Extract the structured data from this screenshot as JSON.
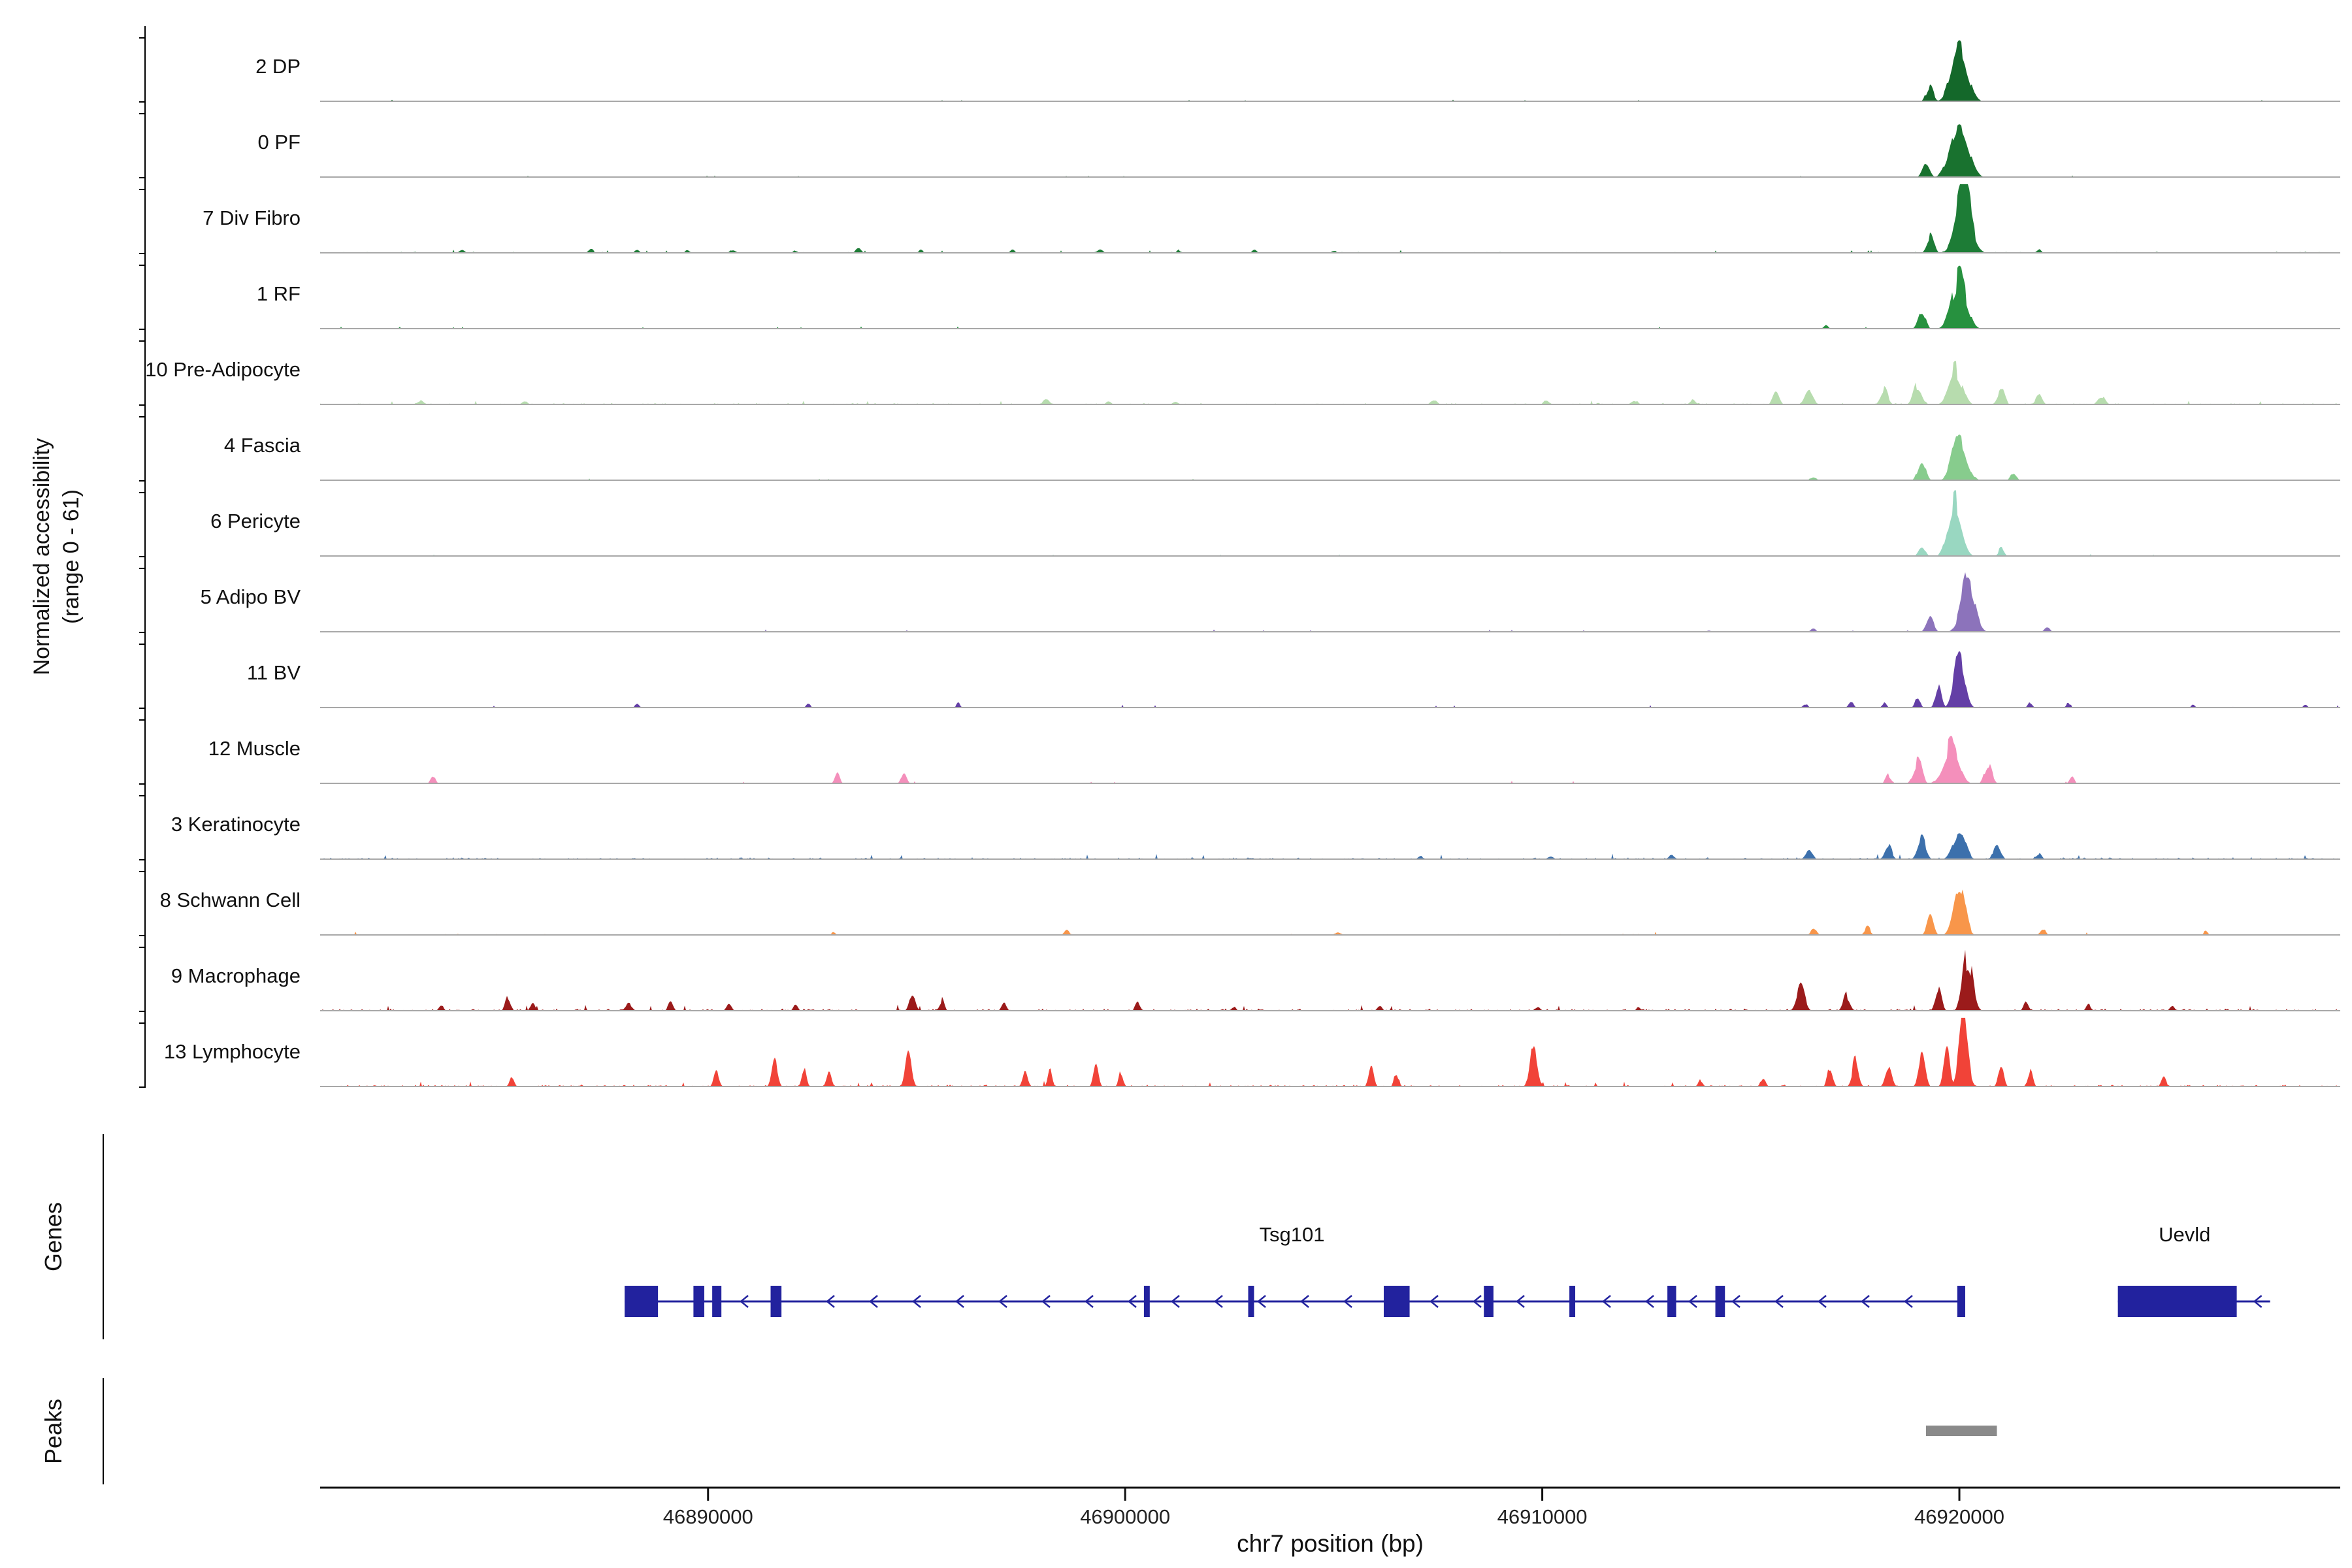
{
  "figure": {
    "y_axis_label_line1": "Normalized accessibility",
    "y_axis_label_line2": "(range 0 - 61)",
    "genes_label": "Genes",
    "peaks_label": "Peaks",
    "x_axis_title": "chr7 position (bp)"
  },
  "chart_data": {
    "type": "area",
    "title": "",
    "xlabel": "chr7 position (bp)",
    "ylabel": "Normalized accessibility (range 0 - 61)",
    "x_range_bp": [
      46880700,
      46929100
    ],
    "y_range_per_track": [
      0,
      61
    ],
    "x_ticks": [
      {
        "bp": 46890000,
        "label": "46890000"
      },
      {
        "bp": 46900000,
        "label": "46900000"
      },
      {
        "bp": 46910000,
        "label": "46910000"
      },
      {
        "bp": 46920000,
        "label": "46920000"
      }
    ],
    "tracks": [
      {
        "label": "2 DP",
        "color": "#14682a",
        "noise": 0.012,
        "peaks": [
          [
            46920000,
            0.9,
            950
          ],
          [
            46919300,
            0.28,
            420
          ]
        ]
      },
      {
        "label": "0 PF",
        "color": "#19722f",
        "noise": 0.012,
        "peaks": [
          [
            46920000,
            0.85,
            1050
          ],
          [
            46919200,
            0.24,
            450
          ]
        ]
      },
      {
        "label": "7 Div Fibro",
        "color": "#1d7c36",
        "noise": 0.022,
        "peaks": [
          [
            46920100,
            0.98,
            950
          ],
          [
            46919300,
            0.3,
            420
          ],
          [
            46884100,
            0.05,
            350
          ],
          [
            46887200,
            0.06,
            350
          ],
          [
            46888300,
            0.05,
            300
          ],
          [
            46889500,
            0.05,
            300
          ],
          [
            46890600,
            0.06,
            350
          ],
          [
            46892100,
            0.05,
            300
          ],
          [
            46893600,
            0.07,
            350
          ],
          [
            46895100,
            0.05,
            300
          ],
          [
            46897300,
            0.05,
            300
          ],
          [
            46899400,
            0.06,
            350
          ],
          [
            46901300,
            0.05,
            300
          ],
          [
            46903100,
            0.05,
            300
          ],
          [
            46905000,
            0.04,
            300
          ],
          [
            46921900,
            0.06,
            300
          ]
        ]
      },
      {
        "label": "1 RF",
        "color": "#27913f",
        "noise": 0.015,
        "peaks": [
          [
            46920000,
            0.86,
            900
          ],
          [
            46919100,
            0.26,
            450
          ],
          [
            46916800,
            0.05,
            300
          ]
        ]
      },
      {
        "label": "10 Pre-Adipocyte",
        "color": "#b7dcae",
        "noise": 0.028,
        "peaks": [
          [
            46919900,
            0.52,
            800
          ],
          [
            46919000,
            0.3,
            500
          ],
          [
            46918200,
            0.26,
            450
          ],
          [
            46921000,
            0.22,
            450
          ],
          [
            46921900,
            0.16,
            400
          ],
          [
            46916400,
            0.24,
            500
          ],
          [
            46915600,
            0.18,
            400
          ],
          [
            46923400,
            0.14,
            450
          ],
          [
            46883100,
            0.08,
            400
          ],
          [
            46885600,
            0.06,
            350
          ],
          [
            46898100,
            0.08,
            400
          ],
          [
            46899600,
            0.07,
            350
          ],
          [
            46901200,
            0.06,
            350
          ],
          [
            46907400,
            0.07,
            400
          ],
          [
            46910100,
            0.07,
            350
          ],
          [
            46912200,
            0.08,
            400
          ],
          [
            46913600,
            0.07,
            350
          ]
        ]
      },
      {
        "label": "4 Fascia",
        "color": "#87cc8d",
        "noise": 0.014,
        "peaks": [
          [
            46920000,
            0.72,
            850
          ],
          [
            46919100,
            0.32,
            450
          ],
          [
            46921300,
            0.14,
            350
          ],
          [
            46916500,
            0.07,
            350
          ]
        ]
      },
      {
        "label": "6 Pericyte",
        "color": "#99d7c1",
        "noise": 0.014,
        "peaks": [
          [
            46919900,
            0.78,
            800
          ],
          [
            46919100,
            0.2,
            400
          ],
          [
            46921000,
            0.12,
            350
          ]
        ]
      },
      {
        "label": "5 Adipo BV",
        "color": "#8c73bb",
        "noise": 0.016,
        "peaks": [
          [
            46920200,
            0.78,
            850
          ],
          [
            46919300,
            0.24,
            450
          ],
          [
            46916500,
            0.06,
            350
          ],
          [
            46922100,
            0.07,
            350
          ],
          [
            46914000,
            0.04,
            300
          ]
        ]
      },
      {
        "label": "11 BV",
        "color": "#643fa6",
        "noise": 0.018,
        "peaks": [
          [
            46920000,
            0.85,
            650
          ],
          [
            46919500,
            0.4,
            350
          ],
          [
            46919000,
            0.15,
            300
          ],
          [
            46888300,
            0.08,
            250
          ],
          [
            46892400,
            0.08,
            250
          ],
          [
            46896000,
            0.08,
            250
          ],
          [
            46916300,
            0.08,
            300
          ],
          [
            46917400,
            0.1,
            300
          ],
          [
            46918200,
            0.1,
            280
          ],
          [
            46921700,
            0.08,
            280
          ],
          [
            46922600,
            0.07,
            250
          ],
          [
            46925600,
            0.05,
            250
          ],
          [
            46928300,
            0.06,
            250
          ]
        ]
      },
      {
        "label": "12 Muscle",
        "color": "#f48fbb",
        "noise": 0.016,
        "peaks": [
          [
            46919800,
            0.58,
            900
          ],
          [
            46919000,
            0.38,
            500
          ],
          [
            46920700,
            0.3,
            450
          ],
          [
            46918300,
            0.15,
            350
          ],
          [
            46883400,
            0.12,
            300
          ],
          [
            46893100,
            0.14,
            300
          ],
          [
            46894700,
            0.17,
            320
          ],
          [
            46922700,
            0.1,
            300
          ]
        ]
      },
      {
        "label": "3 Keratinocyte",
        "color": "#3c70ac",
        "noise": 0.035,
        "peaks": [
          [
            46920000,
            0.44,
            750
          ],
          [
            46919100,
            0.3,
            500
          ],
          [
            46918300,
            0.2,
            450
          ],
          [
            46920900,
            0.22,
            450
          ],
          [
            46916400,
            0.12,
            450
          ],
          [
            46921900,
            0.1,
            350
          ],
          [
            46907100,
            0.05,
            400
          ],
          [
            46910200,
            0.06,
            400
          ],
          [
            46913100,
            0.06,
            400
          ],
          [
            46903000,
            0.04,
            350
          ]
        ]
      },
      {
        "label": "8 Schwann Cell",
        "color": "#f8964a",
        "noise": 0.022,
        "peaks": [
          [
            46920000,
            0.7,
            700
          ],
          [
            46919300,
            0.26,
            400
          ],
          [
            46917800,
            0.12,
            380
          ],
          [
            46916500,
            0.1,
            380
          ],
          [
            46898600,
            0.07,
            320
          ],
          [
            46905100,
            0.06,
            320
          ],
          [
            46922000,
            0.1,
            320
          ],
          [
            46925900,
            0.06,
            280
          ],
          [
            46893000,
            0.05,
            280
          ]
        ]
      },
      {
        "label": "9 Macrophage",
        "color": "#9b1b1b",
        "noise": 0.04,
        "peaks": [
          [
            46920200,
            0.9,
            600
          ],
          [
            46919500,
            0.32,
            380
          ],
          [
            46916200,
            0.36,
            500
          ],
          [
            46917300,
            0.24,
            420
          ],
          [
            46883600,
            0.1,
            280
          ],
          [
            46885200,
            0.2,
            320
          ],
          [
            46885800,
            0.16,
            280
          ],
          [
            46888100,
            0.14,
            420
          ],
          [
            46889100,
            0.12,
            320
          ],
          [
            46890500,
            0.12,
            320
          ],
          [
            46892100,
            0.09,
            280
          ],
          [
            46894900,
            0.3,
            360
          ],
          [
            46895600,
            0.18,
            300
          ],
          [
            46897100,
            0.12,
            300
          ],
          [
            46900300,
            0.12,
            320
          ],
          [
            46902600,
            0.08,
            280
          ],
          [
            46906100,
            0.09,
            300
          ],
          [
            46909900,
            0.07,
            280
          ],
          [
            46912300,
            0.07,
            280
          ],
          [
            46921600,
            0.14,
            300
          ],
          [
            46923100,
            0.1,
            300
          ],
          [
            46925100,
            0.11,
            300
          ]
        ]
      },
      {
        "label": "13 Lymphocyte",
        "color": "#f14338",
        "noise": 0.035,
        "peaks": [
          [
            46920100,
            0.98,
            550
          ],
          [
            46919700,
            0.65,
            350
          ],
          [
            46919100,
            0.45,
            400
          ],
          [
            46918300,
            0.33,
            400
          ],
          [
            46917500,
            0.4,
            380
          ],
          [
            46916900,
            0.28,
            320
          ],
          [
            46921000,
            0.35,
            320
          ],
          [
            46921700,
            0.28,
            300
          ],
          [
            46885300,
            0.16,
            280
          ],
          [
            46890200,
            0.24,
            320
          ],
          [
            46891600,
            0.48,
            350
          ],
          [
            46892300,
            0.25,
            280
          ],
          [
            46892900,
            0.28,
            300
          ],
          [
            46894800,
            0.62,
            360
          ],
          [
            46897600,
            0.33,
            300
          ],
          [
            46898200,
            0.28,
            260
          ],
          [
            46899300,
            0.33,
            300
          ],
          [
            46899900,
            0.26,
            260
          ],
          [
            46905900,
            0.33,
            300
          ],
          [
            46906500,
            0.26,
            260
          ],
          [
            46909800,
            0.78,
            420
          ],
          [
            46913800,
            0.12,
            280
          ],
          [
            46915300,
            0.18,
            300
          ],
          [
            46924900,
            0.16,
            300
          ]
        ]
      }
    ],
    "genes": [
      {
        "name": "Tsg101",
        "strand": "-",
        "start_bp": 46888000,
        "end_bp": 46920100,
        "label_bp": 46904000,
        "exons": [
          [
            46888000,
            800
          ],
          [
            46889650,
            260
          ],
          [
            46890100,
            220
          ],
          [
            46891500,
            260
          ],
          [
            46900450,
            140
          ],
          [
            46902950,
            140
          ],
          [
            46906200,
            620
          ],
          [
            46908600,
            230
          ],
          [
            46910650,
            140
          ],
          [
            46913000,
            210
          ],
          [
            46914150,
            230
          ],
          [
            46919950,
            190
          ]
        ]
      },
      {
        "name": "Uevld",
        "strand": "-",
        "start_bp": 46923800,
        "end_bp": 46927450,
        "label_bp": 46925400,
        "exons": [
          [
            46923800,
            2850
          ]
        ]
      }
    ],
    "gene_color": "#22229e",
    "peak_calls": [
      [
        46919200,
        46920900
      ]
    ],
    "peak_color": "#8a8a8a"
  }
}
